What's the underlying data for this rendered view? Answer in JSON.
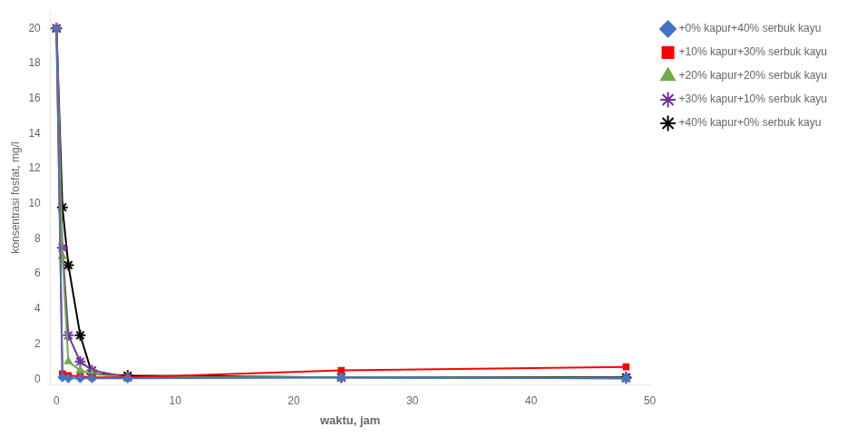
{
  "chart_data": {
    "type": "line",
    "x_label": "waktu, jam",
    "y_label": "konsentrasi fosfat, mg/l",
    "x": [
      0,
      0.5,
      1,
      2,
      3,
      6,
      24,
      48
    ],
    "series": [
      {
        "name": "+0% kapur+40% serbuk kayu",
        "color": "#4472C4",
        "marker": "diamond",
        "values": [
          20,
          0.1,
          0.05,
          0.05,
          0.05,
          0.05,
          0.1,
          0.05
        ]
      },
      {
        "name": "+10% kapur+30% serbuk kayu",
        "color": "#FF0000",
        "marker": "square",
        "values": [
          20,
          0.3,
          0.2,
          0.15,
          0.1,
          0.1,
          0.5,
          0.7
        ]
      },
      {
        "name": "+20% kapur+20% serbuk kayu",
        "color": "#70AD47",
        "marker": "triangle",
        "values": [
          20,
          7.0,
          1.0,
          0.5,
          0.3,
          0.1,
          0.1,
          0.05
        ]
      },
      {
        "name": "+30% kapur+10% serbuk kayu",
        "color": "#7030A0",
        "marker": "star",
        "values": [
          20,
          7.5,
          2.5,
          1.0,
          0.5,
          0.1,
          0.1,
          0.05
        ]
      },
      {
        "name": "+40% kapur+0% serbuk kayu",
        "color": "#000000",
        "marker": "star",
        "values": [
          20,
          9.8,
          6.5,
          2.5,
          0.3,
          0.2,
          0.1,
          0.1
        ]
      }
    ],
    "xlim": [
      -0.5,
      50
    ],
    "ylim": [
      -0.3,
      21
    ],
    "xticks": [
      0,
      10,
      20,
      30,
      40,
      50
    ],
    "yticks": [
      0,
      2,
      4,
      6,
      8,
      10,
      12,
      14,
      16,
      18,
      20
    ],
    "grid": false,
    "legend": "upper right"
  }
}
